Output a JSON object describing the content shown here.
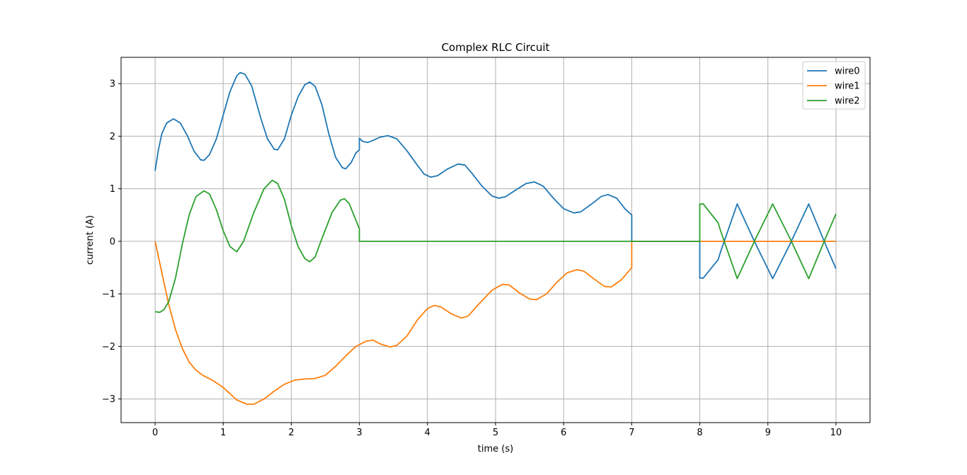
{
  "chart_data": {
    "type": "line",
    "title": "Complex RLC Circuit",
    "xlabel": "time (s)",
    "ylabel": "current (A)",
    "xlim": [
      -0.5,
      10.5
    ],
    "ylim": [
      -3.45,
      3.5
    ],
    "xticks": [
      0,
      1,
      2,
      3,
      4,
      5,
      6,
      7,
      8,
      9,
      10
    ],
    "yticks": [
      -3,
      -2,
      -1,
      0,
      1,
      2,
      3
    ],
    "xtick_labels": [
      "0",
      "1",
      "2",
      "3",
      "4",
      "5",
      "6",
      "7",
      "8",
      "9",
      "10"
    ],
    "ytick_labels": [
      "−3",
      "−2",
      "−1",
      "0",
      "1",
      "2",
      "3"
    ],
    "grid": true,
    "legend_position": "top-right",
    "series": [
      {
        "name": "wire0",
        "color": "#1f77b4",
        "points": [
          [
            0,
            1.34
          ],
          [
            0.05,
            1.75
          ],
          [
            0.1,
            2.05
          ],
          [
            0.17,
            2.25
          ],
          [
            0.27,
            2.33
          ],
          [
            0.37,
            2.25
          ],
          [
            0.47,
            2.02
          ],
          [
            0.57,
            1.72
          ],
          [
            0.67,
            1.55
          ],
          [
            0.72,
            1.54
          ],
          [
            0.8,
            1.65
          ],
          [
            0.9,
            1.95
          ],
          [
            1.0,
            2.4
          ],
          [
            1.1,
            2.85
          ],
          [
            1.2,
            3.15
          ],
          [
            1.25,
            3.21
          ],
          [
            1.32,
            3.18
          ],
          [
            1.42,
            2.95
          ],
          [
            1.55,
            2.35
          ],
          [
            1.65,
            1.95
          ],
          [
            1.75,
            1.75
          ],
          [
            1.8,
            1.74
          ],
          [
            1.9,
            1.95
          ],
          [
            2.0,
            2.4
          ],
          [
            2.1,
            2.75
          ],
          [
            2.2,
            2.98
          ],
          [
            2.27,
            3.03
          ],
          [
            2.35,
            2.95
          ],
          [
            2.45,
            2.6
          ],
          [
            2.55,
            2.05
          ],
          [
            2.65,
            1.6
          ],
          [
            2.75,
            1.4
          ],
          [
            2.8,
            1.38
          ],
          [
            2.88,
            1.5
          ],
          [
            2.95,
            1.68
          ],
          [
            3.0,
            1.74
          ],
          [
            3.0,
            1.96
          ],
          [
            3.05,
            1.9
          ],
          [
            3.12,
            1.88
          ],
          [
            3.2,
            1.92
          ],
          [
            3.3,
            1.98
          ],
          [
            3.42,
            2.01
          ],
          [
            3.55,
            1.95
          ],
          [
            3.7,
            1.72
          ],
          [
            3.85,
            1.45
          ],
          [
            3.95,
            1.28
          ],
          [
            4.05,
            1.22
          ],
          [
            4.15,
            1.25
          ],
          [
            4.3,
            1.38
          ],
          [
            4.45,
            1.47
          ],
          [
            4.55,
            1.45
          ],
          [
            4.65,
            1.3
          ],
          [
            4.8,
            1.05
          ],
          [
            4.95,
            0.86
          ],
          [
            5.05,
            0.82
          ],
          [
            5.15,
            0.85
          ],
          [
            5.3,
            0.98
          ],
          [
            5.45,
            1.1
          ],
          [
            5.57,
            1.13
          ],
          [
            5.7,
            1.05
          ],
          [
            5.85,
            0.82
          ],
          [
            6.0,
            0.62
          ],
          [
            6.15,
            0.54
          ],
          [
            6.25,
            0.56
          ],
          [
            6.4,
            0.7
          ],
          [
            6.55,
            0.85
          ],
          [
            6.65,
            0.89
          ],
          [
            6.78,
            0.82
          ],
          [
            6.9,
            0.62
          ],
          [
            7.0,
            0.5
          ],
          [
            7.0,
            0.0
          ],
          [
            8.0,
            0.0
          ],
          [
            8.0,
            -0.7
          ],
          [
            8.05,
            -0.7
          ],
          [
            8.27,
            -0.35
          ],
          [
            8.3,
            -0.22
          ],
          [
            8.55,
            0.71
          ],
          [
            8.82,
            -0.05
          ],
          [
            9.07,
            -0.71
          ],
          [
            9.33,
            -0.04
          ],
          [
            9.6,
            0.71
          ],
          [
            9.86,
            -0.1
          ],
          [
            10.0,
            -0.52
          ]
        ]
      },
      {
        "name": "wire1",
        "color": "#ff7f0e",
        "points": [
          [
            0,
            0.0
          ],
          [
            0.1,
            -0.6
          ],
          [
            0.2,
            -1.2
          ],
          [
            0.3,
            -1.68
          ],
          [
            0.4,
            -2.04
          ],
          [
            0.5,
            -2.3
          ],
          [
            0.6,
            -2.45
          ],
          [
            0.7,
            -2.55
          ],
          [
            0.85,
            -2.65
          ],
          [
            1.0,
            -2.78
          ],
          [
            1.1,
            -2.9
          ],
          [
            1.2,
            -3.02
          ],
          [
            1.35,
            -3.1
          ],
          [
            1.45,
            -3.1
          ],
          [
            1.6,
            -3.0
          ],
          [
            1.75,
            -2.85
          ],
          [
            1.9,
            -2.72
          ],
          [
            2.05,
            -2.64
          ],
          [
            2.2,
            -2.62
          ],
          [
            2.35,
            -2.61
          ],
          [
            2.5,
            -2.55
          ],
          [
            2.65,
            -2.38
          ],
          [
            2.8,
            -2.18
          ],
          [
            2.95,
            -2.0
          ],
          [
            3.1,
            -1.9
          ],
          [
            3.2,
            -1.88
          ],
          [
            3.3,
            -1.95
          ],
          [
            3.45,
            -2.01
          ],
          [
            3.55,
            -1.98
          ],
          [
            3.7,
            -1.8
          ],
          [
            3.85,
            -1.5
          ],
          [
            4.0,
            -1.28
          ],
          [
            4.1,
            -1.22
          ],
          [
            4.2,
            -1.25
          ],
          [
            4.35,
            -1.38
          ],
          [
            4.5,
            -1.46
          ],
          [
            4.6,
            -1.42
          ],
          [
            4.75,
            -1.2
          ],
          [
            4.95,
            -0.93
          ],
          [
            5.1,
            -0.82
          ],
          [
            5.2,
            -0.83
          ],
          [
            5.35,
            -0.98
          ],
          [
            5.5,
            -1.1
          ],
          [
            5.6,
            -1.11
          ],
          [
            5.75,
            -1.0
          ],
          [
            5.9,
            -0.78
          ],
          [
            6.05,
            -0.6
          ],
          [
            6.2,
            -0.54
          ],
          [
            6.3,
            -0.57
          ],
          [
            6.45,
            -0.72
          ],
          [
            6.6,
            -0.86
          ],
          [
            6.7,
            -0.87
          ],
          [
            6.85,
            -0.73
          ],
          [
            7.0,
            -0.5
          ],
          [
            7.0,
            0.0
          ],
          [
            8.0,
            0.0
          ],
          [
            10.0,
            0.0
          ]
        ]
      },
      {
        "name": "wire2",
        "color": "#2ca02c",
        "points": [
          [
            0,
            -1.34
          ],
          [
            0.07,
            -1.35
          ],
          [
            0.13,
            -1.3
          ],
          [
            0.2,
            -1.15
          ],
          [
            0.3,
            -0.7
          ],
          [
            0.4,
            -0.05
          ],
          [
            0.5,
            0.5
          ],
          [
            0.6,
            0.85
          ],
          [
            0.72,
            0.96
          ],
          [
            0.8,
            0.9
          ],
          [
            0.9,
            0.6
          ],
          [
            1.0,
            0.2
          ],
          [
            1.1,
            -0.1
          ],
          [
            1.2,
            -0.2
          ],
          [
            1.3,
            0.0
          ],
          [
            1.45,
            0.55
          ],
          [
            1.6,
            1.0
          ],
          [
            1.72,
            1.16
          ],
          [
            1.8,
            1.1
          ],
          [
            1.9,
            0.8
          ],
          [
            2.0,
            0.3
          ],
          [
            2.1,
            -0.1
          ],
          [
            2.2,
            -0.33
          ],
          [
            2.27,
            -0.39
          ],
          [
            2.35,
            -0.3
          ],
          [
            2.45,
            0.05
          ],
          [
            2.6,
            0.55
          ],
          [
            2.72,
            0.78
          ],
          [
            2.78,
            0.81
          ],
          [
            2.85,
            0.72
          ],
          [
            2.95,
            0.4
          ],
          [
            3.0,
            0.24
          ],
          [
            3.0,
            0.0
          ],
          [
            8.0,
            0.0
          ],
          [
            8.0,
            0.71
          ],
          [
            8.05,
            0.71
          ],
          [
            8.27,
            0.35
          ],
          [
            8.3,
            0.22
          ],
          [
            8.55,
            -0.71
          ],
          [
            8.82,
            0.05
          ],
          [
            9.07,
            0.71
          ],
          [
            9.33,
            0.04
          ],
          [
            9.6,
            -0.71
          ],
          [
            9.86,
            0.1
          ],
          [
            10.0,
            0.52
          ]
        ]
      }
    ]
  }
}
